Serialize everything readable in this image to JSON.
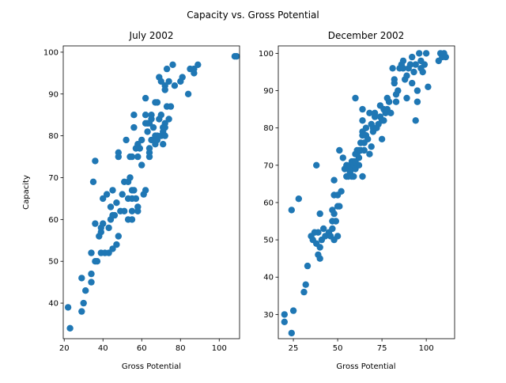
{
  "figure_title": "Capacity vs. Gross Potential",
  "colors": {
    "marker": "#1f77b4",
    "axes": "#000000",
    "background": "#ffffff"
  },
  "chart_data": [
    {
      "type": "scatter",
      "title": "July 2002",
      "xlabel": "Gross Potential",
      "ylabel": "Capacity",
      "xlim": [
        19.5,
        110.5
      ],
      "ylim": [
        31.5,
        101.5
      ],
      "xticks": [
        20,
        40,
        60,
        80,
        100
      ],
      "yticks": [
        40,
        50,
        60,
        70,
        80,
        90,
        100
      ],
      "grid": false,
      "points": [
        [
          22,
          39
        ],
        [
          23,
          34
        ],
        [
          29,
          46
        ],
        [
          29,
          38
        ],
        [
          30,
          40
        ],
        [
          31,
          43
        ],
        [
          34,
          45
        ],
        [
          34,
          47
        ],
        [
          34,
          52
        ],
        [
          35,
          69
        ],
        [
          36,
          74
        ],
        [
          36,
          59
        ],
        [
          36,
          50
        ],
        [
          37,
          50
        ],
        [
          38,
          56
        ],
        [
          39,
          58
        ],
        [
          39,
          57
        ],
        [
          39,
          52
        ],
        [
          40,
          65
        ],
        [
          40,
          59
        ],
        [
          41,
          52
        ],
        [
          42,
          66
        ],
        [
          43,
          58
        ],
        [
          43,
          52
        ],
        [
          44,
          63
        ],
        [
          44,
          60
        ],
        [
          45,
          67
        ],
        [
          45,
          61
        ],
        [
          45,
          53
        ],
        [
          46,
          61
        ],
        [
          47,
          64
        ],
        [
          47,
          54
        ],
        [
          48,
          56
        ],
        [
          48,
          76
        ],
        [
          48,
          75
        ],
        [
          49,
          62
        ],
        [
          50,
          66
        ],
        [
          51,
          69
        ],
        [
          51,
          62
        ],
        [
          52,
          79
        ],
        [
          53,
          69
        ],
        [
          53,
          65
        ],
        [
          53,
          60
        ],
        [
          54,
          75
        ],
        [
          54,
          70
        ],
        [
          55,
          75
        ],
        [
          55,
          67
        ],
        [
          55,
          65
        ],
        [
          55,
          62
        ],
        [
          55,
          60
        ],
        [
          56,
          85
        ],
        [
          56,
          82
        ],
        [
          56,
          67
        ],
        [
          57,
          77
        ],
        [
          57,
          65
        ],
        [
          58,
          78
        ],
        [
          58,
          75
        ],
        [
          58,
          63
        ],
        [
          58,
          62
        ],
        [
          59,
          77
        ],
        [
          60,
          79
        ],
        [
          60,
          73
        ],
        [
          61,
          66
        ],
        [
          62,
          89
        ],
        [
          62,
          85
        ],
        [
          62,
          83
        ],
        [
          62,
          67
        ],
        [
          63,
          83
        ],
        [
          63,
          81
        ],
        [
          64,
          83
        ],
        [
          64,
          77
        ],
        [
          64,
          76
        ],
        [
          64,
          75
        ],
        [
          65,
          85
        ],
        [
          65,
          84
        ],
        [
          65,
          79
        ],
        [
          66,
          82
        ],
        [
          67,
          88
        ],
        [
          67,
          80
        ],
        [
          67,
          78
        ],
        [
          68,
          88
        ],
        [
          68,
          80
        ],
        [
          68,
          79
        ],
        [
          69,
          94
        ],
        [
          69,
          84
        ],
        [
          70,
          93
        ],
        [
          70,
          85
        ],
        [
          70,
          80
        ],
        [
          71,
          82
        ],
        [
          71,
          81
        ],
        [
          71,
          78
        ],
        [
          72,
          92
        ],
        [
          72,
          91
        ],
        [
          72,
          83
        ],
        [
          72,
          82
        ],
        [
          72,
          80
        ],
        [
          73,
          96
        ],
        [
          73,
          87
        ],
        [
          74,
          84
        ],
        [
          74,
          93
        ],
        [
          75,
          87
        ],
        [
          76,
          97
        ],
        [
          77,
          92
        ],
        [
          80,
          93
        ],
        [
          81,
          94
        ],
        [
          84,
          90
        ],
        [
          85,
          96
        ],
        [
          87,
          96
        ],
        [
          87,
          95
        ],
        [
          89,
          97
        ],
        [
          108,
          99
        ],
        [
          109,
          99
        ]
      ]
    },
    {
      "type": "scatter",
      "title": "December 2002",
      "xlabel": "Gross Potential",
      "ylabel": "",
      "xlim": [
        16.5,
        116
      ],
      "ylim": [
        23.5,
        102
      ],
      "xticks": [
        25,
        50,
        75,
        100
      ],
      "yticks": [
        30,
        40,
        50,
        60,
        70,
        80,
        90,
        100
      ],
      "grid": false,
      "points": [
        [
          20,
          30
        ],
        [
          20,
          28
        ],
        [
          24,
          25
        ],
        [
          24,
          58
        ],
        [
          25,
          31
        ],
        [
          28,
          61
        ],
        [
          31,
          36
        ],
        [
          32,
          38
        ],
        [
          33,
          43
        ],
        [
          35,
          51
        ],
        [
          36,
          50
        ],
        [
          37,
          52
        ],
        [
          38,
          70
        ],
        [
          38,
          49
        ],
        [
          39,
          52
        ],
        [
          39,
          46
        ],
        [
          40,
          48
        ],
        [
          40,
          45
        ],
        [
          40,
          57
        ],
        [
          41,
          50
        ],
        [
          42,
          53
        ],
        [
          43,
          51
        ],
        [
          45,
          52
        ],
        [
          46,
          51
        ],
        [
          47,
          58
        ],
        [
          47,
          55
        ],
        [
          47,
          53
        ],
        [
          48,
          66
        ],
        [
          48,
          57
        ],
        [
          48,
          50
        ],
        [
          48,
          62
        ],
        [
          49,
          55
        ],
        [
          50,
          59
        ],
        [
          50,
          62
        ],
        [
          50,
          51
        ],
        [
          51,
          74
        ],
        [
          51,
          59
        ],
        [
          52,
          63
        ],
        [
          53,
          72
        ],
        [
          54,
          69
        ],
        [
          55,
          70
        ],
        [
          55,
          67
        ],
        [
          56,
          67
        ],
        [
          56,
          69
        ],
        [
          57,
          70
        ],
        [
          57,
          68
        ],
        [
          58,
          71
        ],
        [
          58,
          69
        ],
        [
          58,
          67
        ],
        [
          59,
          71
        ],
        [
          59,
          70
        ],
        [
          59,
          67
        ],
        [
          60,
          73
        ],
        [
          60,
          71
        ],
        [
          60,
          69
        ],
        [
          60,
          88
        ],
        [
          61,
          74
        ],
        [
          61,
          73
        ],
        [
          62,
          72
        ],
        [
          62,
          70
        ],
        [
          62,
          74
        ],
        [
          63,
          76
        ],
        [
          63,
          74
        ],
        [
          64,
          85
        ],
        [
          64,
          79
        ],
        [
          64,
          78
        ],
        [
          64,
          82
        ],
        [
          64,
          67
        ],
        [
          65,
          76
        ],
        [
          65,
          74
        ],
        [
          66,
          80
        ],
        [
          66,
          78
        ],
        [
          67,
          77
        ],
        [
          68,
          73
        ],
        [
          68,
          84
        ],
        [
          69,
          75
        ],
        [
          69,
          81
        ],
        [
          70,
          80
        ],
        [
          70,
          79
        ],
        [
          71,
          84
        ],
        [
          71,
          83
        ],
        [
          72,
          80
        ],
        [
          73,
          81
        ],
        [
          74,
          86
        ],
        [
          74,
          83
        ],
        [
          75,
          82
        ],
        [
          75,
          77
        ],
        [
          76,
          85
        ],
        [
          76,
          82
        ],
        [
          77,
          84
        ],
        [
          78,
          88
        ],
        [
          78,
          85
        ],
        [
          79,
          87
        ],
        [
          80,
          84
        ],
        [
          81,
          96
        ],
        [
          82,
          93
        ],
        [
          82,
          92
        ],
        [
          83,
          89
        ],
        [
          83,
          87
        ],
        [
          84,
          90
        ],
        [
          85,
          96
        ],
        [
          86,
          97
        ],
        [
          87,
          98
        ],
        [
          87,
          96
        ],
        [
          88,
          93
        ],
        [
          89,
          94
        ],
        [
          89,
          88
        ],
        [
          90,
          96
        ],
        [
          91,
          97
        ],
        [
          92,
          99
        ],
        [
          92,
          92
        ],
        [
          93,
          95
        ],
        [
          94,
          97
        ],
        [
          94,
          82
        ],
        [
          95,
          87
        ],
        [
          95,
          90
        ],
        [
          96,
          100
        ],
        [
          97,
          98
        ],
        [
          97,
          96
        ],
        [
          98,
          95
        ],
        [
          99,
          97
        ],
        [
          100,
          100
        ],
        [
          101,
          91
        ],
        [
          107,
          98
        ],
        [
          108,
          100
        ],
        [
          109,
          99
        ],
        [
          110,
          100
        ],
        [
          111,
          99
        ]
      ]
    }
  ]
}
